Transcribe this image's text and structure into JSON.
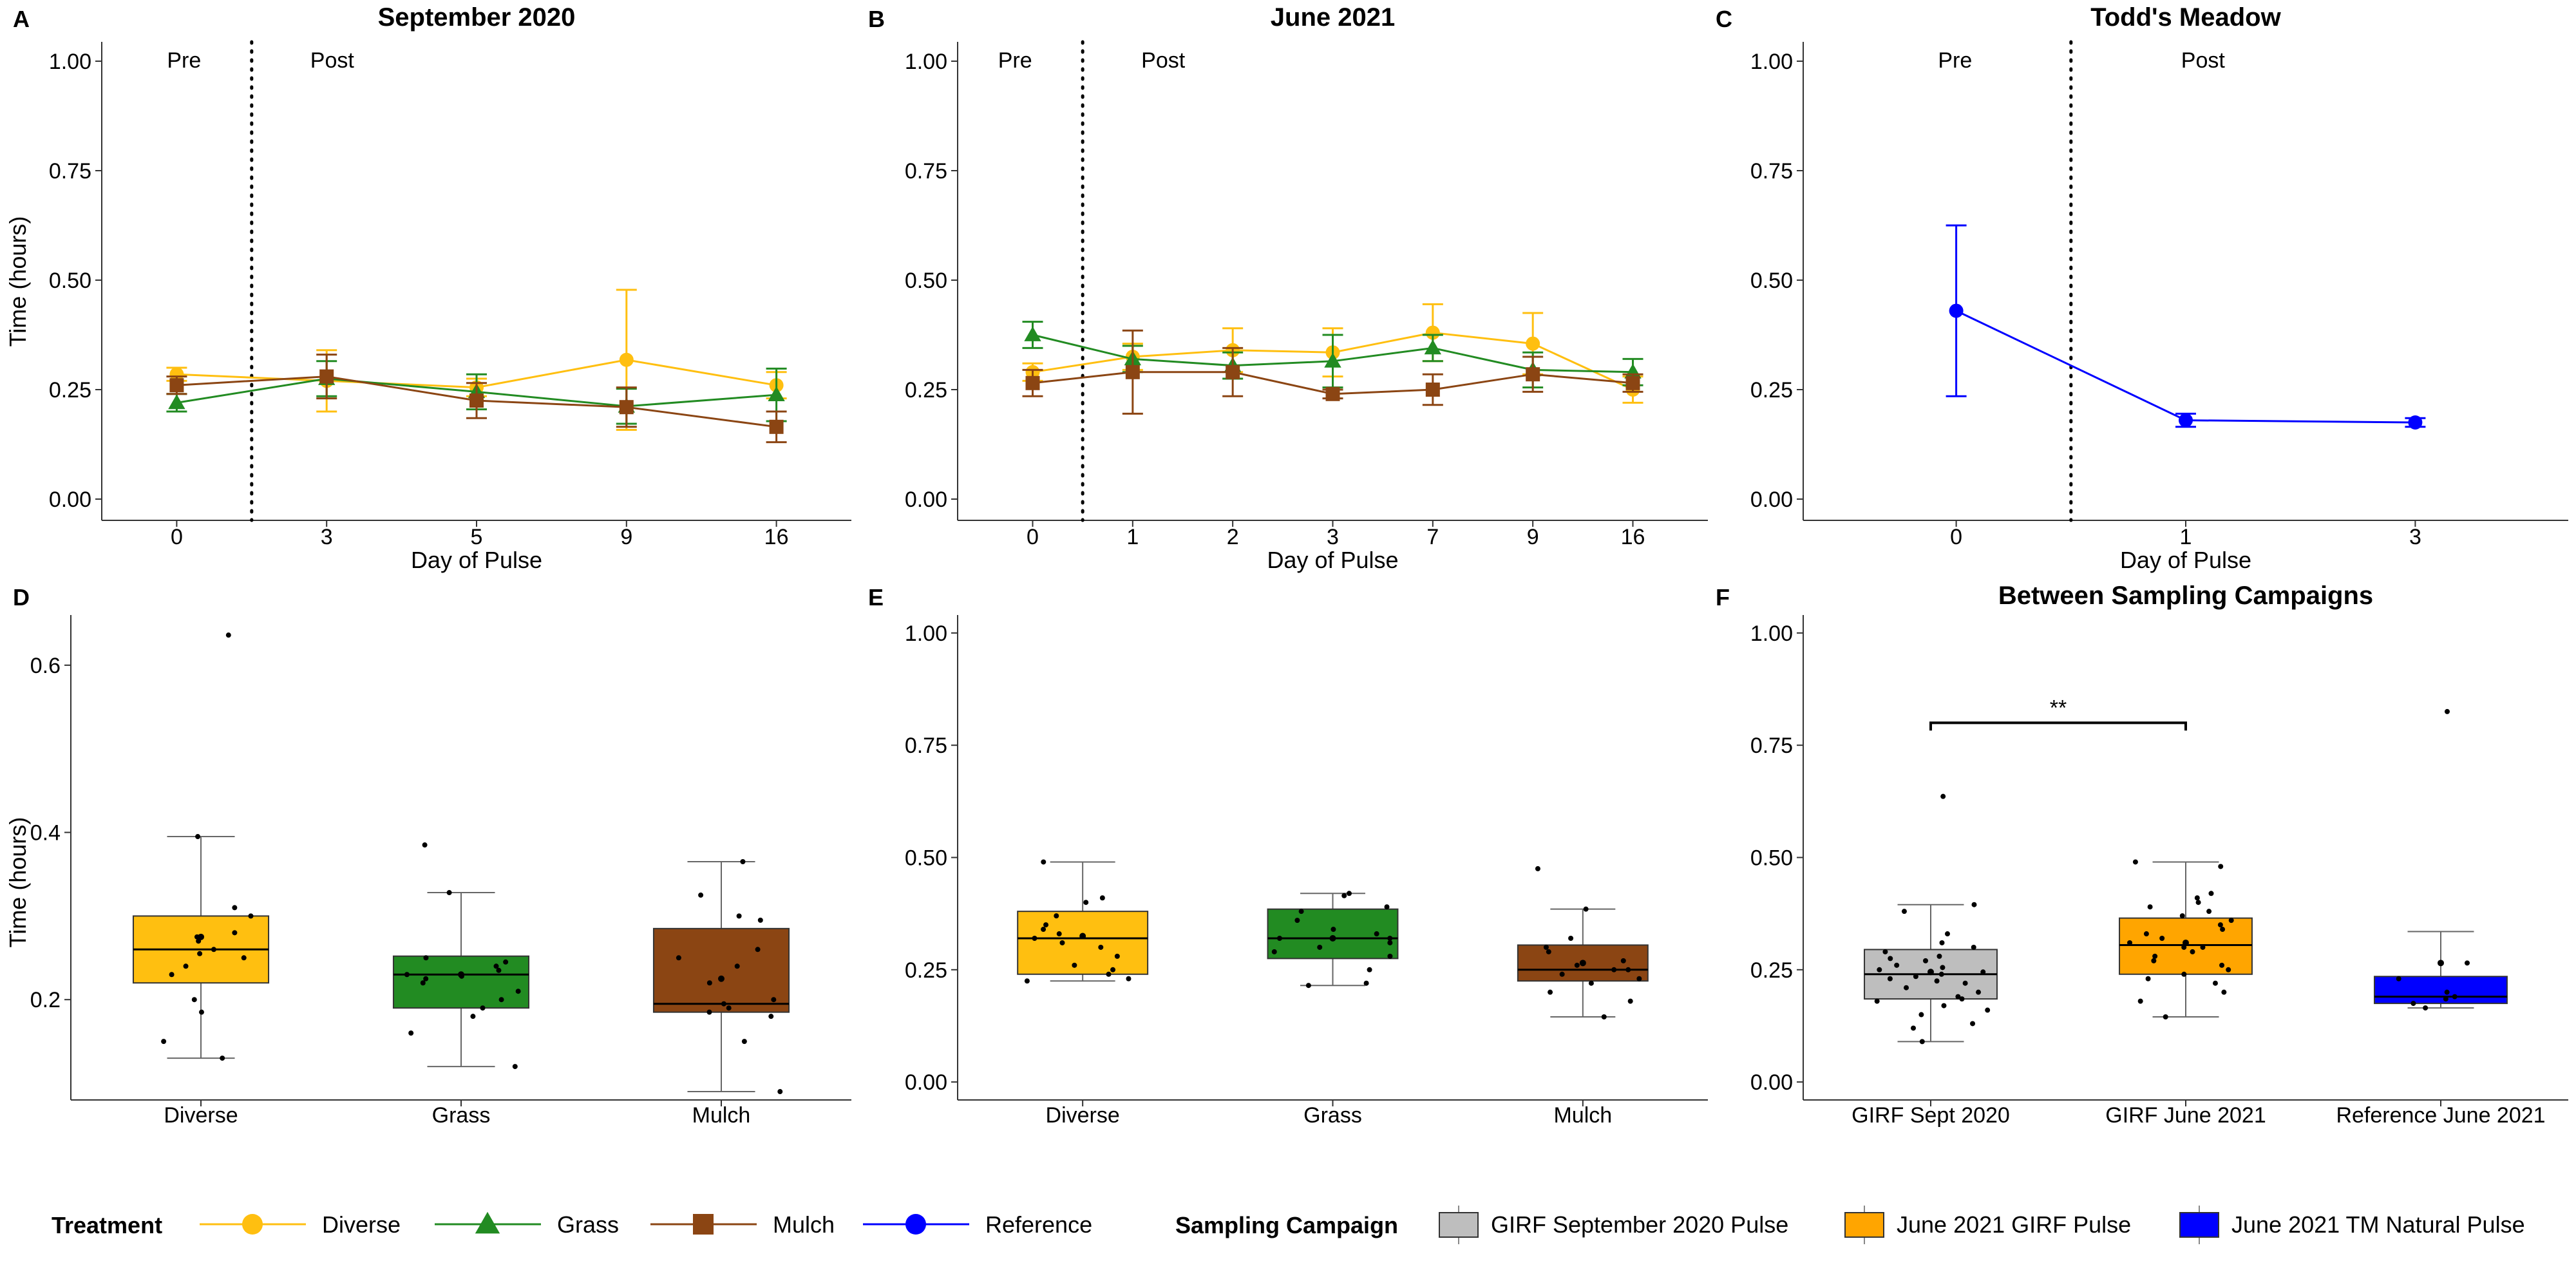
{
  "colors": {
    "Diverse": "#FFBF10",
    "Grass": "#228B22",
    "Mulch": "#8B4513",
    "Reference": "#0000FF",
    "GIRF Sept 2020": "#BEBEBE",
    "GIRF June 2021": "#FFA500",
    "Reference June 2021": "#0000FF"
  },
  "legend": {
    "treatment_title": "Treatment",
    "treatment_items": [
      "Diverse",
      "Grass",
      "Mulch",
      "Reference"
    ],
    "campaign_title": "Sampling Campaign",
    "campaign_items": [
      {
        "label": "GIRF September 2020 Pulse",
        "color": "#BEBEBE"
      },
      {
        "label": "June 2021 GIRF Pulse",
        "color": "#FFA500"
      },
      {
        "label": "June 2021 TM Natural Pulse",
        "color": "#0000FF"
      }
    ]
  },
  "chart_data": [
    {
      "panel": "A",
      "type": "line",
      "title": "September 2020",
      "xlabel": "Day of Pulse",
      "ylabel": "Time (hours)",
      "categories": [
        "0",
        "3",
        "5",
        "9",
        "16"
      ],
      "ylim": [
        0,
        1
      ],
      "yticks": [
        "0.00",
        "0.25",
        "0.50",
        "0.75",
        "1.00"
      ],
      "divider_after_index": 0,
      "pre_label": "Pre",
      "post_label": "Post",
      "series": [
        {
          "name": "Diverse",
          "values": [
            0.285,
            0.27,
            0.255,
            0.318,
            0.26
          ],
          "err": [
            0.015,
            0.07,
            0.02,
            0.16,
            0.03
          ]
        },
        {
          "name": "Grass",
          "values": [
            0.22,
            0.275,
            0.245,
            0.212,
            0.238
          ],
          "err": [
            0.02,
            0.04,
            0.04,
            0.04,
            0.06
          ]
        },
        {
          "name": "Mulch",
          "values": [
            0.26,
            0.28,
            0.225,
            0.21,
            0.165
          ],
          "err": [
            0.02,
            0.05,
            0.04,
            0.045,
            0.035
          ]
        }
      ]
    },
    {
      "panel": "B",
      "type": "line",
      "title": "June 2021",
      "xlabel": "Day of Pulse",
      "categories": [
        "0",
        "1",
        "2",
        "3",
        "7",
        "9",
        "16"
      ],
      "ylim": [
        0,
        1
      ],
      "yticks": [
        "0.00",
        "0.25",
        "0.50",
        "0.75",
        "1.00"
      ],
      "divider_after_index": 0,
      "pre_label": "Pre",
      "post_label": "Post",
      "series": [
        {
          "name": "Diverse",
          "values": [
            0.29,
            0.325,
            0.34,
            0.335,
            0.38,
            0.355,
            0.25
          ],
          "err": [
            0.02,
            0.03,
            0.05,
            0.055,
            0.065,
            0.07,
            0.03
          ]
        },
        {
          "name": "Grass",
          "values": [
            0.375,
            0.32,
            0.305,
            0.315,
            0.345,
            0.295,
            0.29
          ],
          "err": [
            0.03,
            0.03,
            0.03,
            0.06,
            0.03,
            0.04,
            0.03
          ]
        },
        {
          "name": "Mulch",
          "values": [
            0.265,
            0.29,
            0.29,
            0.24,
            0.25,
            0.285,
            0.265
          ],
          "err": [
            0.03,
            0.095,
            0.055,
            0.01,
            0.035,
            0.04,
            0.02
          ]
        }
      ]
    },
    {
      "panel": "C",
      "type": "line",
      "title": "Todd's Meadow",
      "xlabel": "Day of Pulse",
      "categories": [
        "0",
        "1",
        "3"
      ],
      "ylim": [
        0,
        1
      ],
      "yticks": [
        "0.00",
        "0.25",
        "0.50",
        "0.75",
        "1.00"
      ],
      "divider_after_index": 0,
      "pre_label": "Pre",
      "post_label": "Post",
      "series": [
        {
          "name": "Reference",
          "values": [
            0.43,
            0.18,
            0.175
          ],
          "err": [
            0.195,
            0.015,
            0.01
          ]
        }
      ]
    },
    {
      "panel": "D",
      "type": "box",
      "title": "",
      "ylabel": "Time (hours)",
      "categories": [
        "Diverse",
        "Grass",
        "Mulch"
      ],
      "ylim": [
        0.08,
        0.66
      ],
      "yticks": [
        0.2,
        0.4,
        0.6
      ],
      "boxes": [
        {
          "name": "Diverse",
          "color": "#FFBF10",
          "min": 0.13,
          "q1": 0.22,
          "median": 0.26,
          "q3": 0.3,
          "max": 0.395,
          "mean": 0.275,
          "points": [
            0.636,
            0.395,
            0.31,
            0.3,
            0.28,
            0.275,
            0.27,
            0.26,
            0.255,
            0.25,
            0.24,
            0.23,
            0.2,
            0.185,
            0.15,
            0.13
          ]
        },
        {
          "name": "Grass",
          "color": "#228B22",
          "min": 0.12,
          "q1": 0.19,
          "median": 0.23,
          "q3": 0.252,
          "max": 0.328,
          "mean": 0.23,
          "points": [
            0.385,
            0.328,
            0.25,
            0.245,
            0.24,
            0.235,
            0.23,
            0.228,
            0.225,
            0.22,
            0.21,
            0.2,
            0.19,
            0.18,
            0.16,
            0.12
          ]
        },
        {
          "name": "Mulch",
          "color": "#8B4513",
          "min": 0.09,
          "q1": 0.185,
          "median": 0.195,
          "q3": 0.285,
          "max": 0.365,
          "mean": 0.225,
          "points": [
            0.365,
            0.325,
            0.3,
            0.295,
            0.26,
            0.25,
            0.24,
            0.22,
            0.2,
            0.195,
            0.19,
            0.185,
            0.18,
            0.15,
            0.09
          ]
        }
      ]
    },
    {
      "panel": "E",
      "type": "box",
      "title": "",
      "categories": [
        "Diverse",
        "Grass",
        "Mulch"
      ],
      "ylim": [
        -0.04,
        1.04
      ],
      "yticks": [
        "0.00",
        "0.25",
        "0.50",
        "0.75",
        "1.00"
      ],
      "boxes": [
        {
          "name": "Diverse",
          "color": "#FFBF10",
          "min": 0.225,
          "q1": 0.24,
          "median": 0.32,
          "q3": 0.38,
          "max": 0.49,
          "mean": 0.325,
          "points": [
            0.49,
            0.41,
            0.4,
            0.37,
            0.35,
            0.34,
            0.33,
            0.32,
            0.31,
            0.3,
            0.28,
            0.26,
            0.25,
            0.24,
            0.23,
            0.225
          ]
        },
        {
          "name": "Grass",
          "color": "#228B22",
          "min": 0.215,
          "q1": 0.275,
          "median": 0.32,
          "q3": 0.385,
          "max": 0.42,
          "mean": 0.32,
          "points": [
            0.42,
            0.415,
            0.39,
            0.38,
            0.36,
            0.34,
            0.33,
            0.32,
            0.32,
            0.31,
            0.3,
            0.29,
            0.28,
            0.25,
            0.22,
            0.215
          ]
        },
        {
          "name": "Mulch",
          "color": "#8B4513",
          "min": 0.145,
          "q1": 0.225,
          "median": 0.25,
          "q3": 0.305,
          "max": 0.385,
          "mean": 0.265,
          "points": [
            0.475,
            0.385,
            0.32,
            0.3,
            0.29,
            0.27,
            0.26,
            0.25,
            0.25,
            0.24,
            0.23,
            0.22,
            0.2,
            0.18,
            0.145
          ]
        }
      ]
    },
    {
      "panel": "F",
      "type": "box",
      "title": "Between Sampling Campaigns",
      "categories": [
        "GIRF Sept 2020",
        "GIRF June 2021",
        "Reference June 2021"
      ],
      "ylim": [
        -0.04,
        1.04
      ],
      "yticks": [
        "0.00",
        "0.25",
        "0.50",
        "0.75",
        "1.00"
      ],
      "significance": {
        "label": "**",
        "from": 0,
        "to": 1,
        "y": 0.8
      },
      "boxes": [
        {
          "name": "GIRF Sept 2020",
          "color": "#BEBEBE",
          "min": 0.09,
          "q1": 0.185,
          "median": 0.24,
          "q3": 0.295,
          "max": 0.395,
          "mean": 0.245,
          "points": [
            0.636,
            0.395,
            0.38,
            0.33,
            0.31,
            0.3,
            0.29,
            0.28,
            0.275,
            0.27,
            0.26,
            0.255,
            0.25,
            0.245,
            0.24,
            0.235,
            0.23,
            0.225,
            0.22,
            0.21,
            0.2,
            0.19,
            0.185,
            0.18,
            0.17,
            0.16,
            0.15,
            0.13,
            0.12,
            0.09
          ]
        },
        {
          "name": "GIRF June 2021",
          "color": "#FFA500",
          "min": 0.145,
          "q1": 0.24,
          "median": 0.305,
          "q3": 0.365,
          "max": 0.49,
          "mean": 0.31,
          "points": [
            0.49,
            0.48,
            0.42,
            0.41,
            0.4,
            0.39,
            0.38,
            0.37,
            0.36,
            0.35,
            0.34,
            0.33,
            0.32,
            0.31,
            0.3,
            0.3,
            0.29,
            0.28,
            0.27,
            0.26,
            0.25,
            0.24,
            0.23,
            0.22,
            0.2,
            0.18,
            0.145
          ]
        },
        {
          "name": "Reference June 2021",
          "color": "#0000FF",
          "min": 0.165,
          "q1": 0.175,
          "median": 0.19,
          "q3": 0.235,
          "max": 0.335,
          "mean": 0.265,
          "points": [
            0.825,
            0.265,
            0.23,
            0.2,
            0.19,
            0.185,
            0.175,
            0.165
          ]
        }
      ]
    }
  ]
}
